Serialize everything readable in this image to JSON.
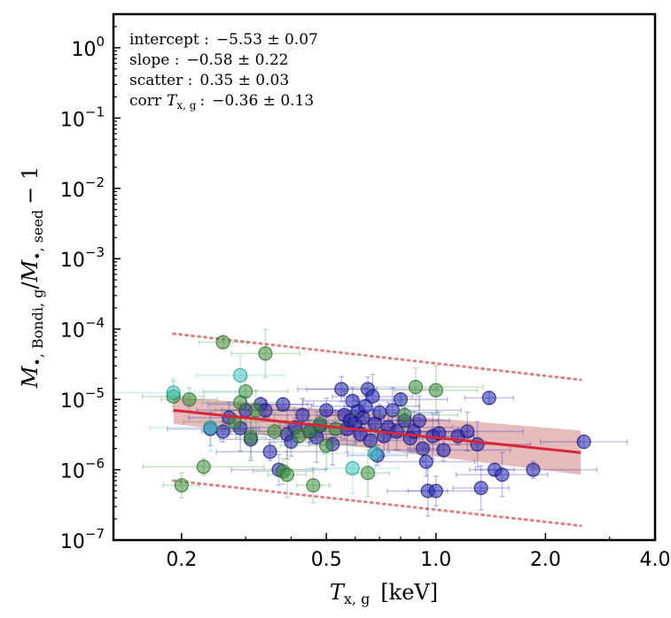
{
  "chart_data": {
    "type": "scatter",
    "xscale": "log",
    "yscale": "log",
    "xlim": [
      0.13,
      4.0
    ],
    "ylim": [
      1e-07,
      3.0
    ],
    "xticks": [
      {
        "value": 0.2,
        "label": "0.2"
      },
      {
        "value": 0.5,
        "label": "0.5"
      },
      {
        "value": 1.0,
        "label": "1.0"
      },
      {
        "value": 2.0,
        "label": "2.0"
      },
      {
        "value": 4.0,
        "label": "4.0"
      }
    ],
    "yticks": [
      {
        "value": 1e-07,
        "mantissa": "10",
        "exponent": "−7"
      },
      {
        "value": 1e-06,
        "mantissa": "10",
        "exponent": "−6"
      },
      {
        "value": 1e-05,
        "mantissa": "10",
        "exponent": "−5"
      },
      {
        "value": 0.0001,
        "mantissa": "10",
        "exponent": "−4"
      },
      {
        "value": 0.001,
        "mantissa": "10",
        "exponent": "−3"
      },
      {
        "value": 0.01,
        "mantissa": "10",
        "exponent": "−2"
      },
      {
        "value": 0.1,
        "mantissa": "10",
        "exponent": "−1"
      },
      {
        "value": 1.0,
        "mantissa": "10",
        "exponent": "0"
      }
    ],
    "xlabel": {
      "symbol": "T",
      "subscript": "x, g",
      "unit": "[keV]"
    },
    "ylabel": {
      "symbol1": "M",
      "subscript1": "•, Bondi, g",
      "symbol2": "M",
      "subscript2": "•, seed",
      "suffix": "− 1"
    },
    "annotations": [
      {
        "label": "intercept :",
        "value": "−5.53 ± 0.07"
      },
      {
        "label": "slope :",
        "value": "−0.58 ± 0.22"
      },
      {
        "label": "scatter :",
        "value": "0.35 ± 0.03"
      },
      {
        "label": "corr",
        "symbol": "T",
        "subscript": "x, g",
        "colon": ":",
        "value": "−0.36 ± 0.13"
      }
    ],
    "fit": {
      "x_range": [
        0.19,
        2.5
      ],
      "y_start": 7e-06,
      "y_end": 1.75e-06,
      "band_lower": [
        4.5e-06,
        8.5e-07
      ],
      "band_upper": [
        1.1e-05,
        3.6e-06
      ],
      "scatter_upper": [
        8.6e-05,
        1.9e-05
      ],
      "scatter_lower": [
        7e-07,
        1.6e-07
      ],
      "line_color": "#d62739",
      "band_color": "#c76868",
      "dotted_color": "#d98484"
    },
    "series": [
      {
        "name": "blue",
        "color": "#2323b0",
        "edge": "#0a0a60",
        "points": [
          [
            0.24,
            3.8e-06
          ],
          [
            0.26,
            3.5e-06
          ],
          [
            0.27,
            5.5e-06
          ],
          [
            0.29,
            3.9e-06
          ],
          [
            0.3,
            7e-06
          ],
          [
            0.31,
            2.7e-06
          ],
          [
            0.33,
            8.5e-06
          ],
          [
            0.34,
            7e-06
          ],
          [
            0.35,
            1.8e-06
          ],
          [
            0.37,
            1e-06
          ],
          [
            0.38,
            8.5e-06
          ],
          [
            0.39,
            3.2e-06
          ],
          [
            0.4,
            2.5e-06
          ],
          [
            0.41,
            4e-06
          ],
          [
            0.43,
            6e-06
          ],
          [
            0.45,
            3.5e-06
          ],
          [
            0.47,
            2.9e-06
          ],
          [
            0.48,
            4.2e-06
          ],
          [
            0.5,
            7e-06
          ],
          [
            0.52,
            2.3e-06
          ],
          [
            0.55,
            1.4e-05
          ],
          [
            0.56,
            6e-06
          ],
          [
            0.57,
            3.8e-06
          ],
          [
            0.58,
            5e-06
          ],
          [
            0.59,
            9.5e-06
          ],
          [
            0.6,
            4.5e-06
          ],
          [
            0.61,
            6.8e-06
          ],
          [
            0.62,
            3.2e-06
          ],
          [
            0.63,
            5.5e-06
          ],
          [
            0.64,
            8e-06
          ],
          [
            0.65,
            1.4e-05
          ],
          [
            0.66,
            2.6e-06
          ],
          [
            0.67,
            1.1e-05
          ],
          [
            0.68,
            4.5e-06
          ],
          [
            0.69,
            1.6e-06
          ],
          [
            0.7,
            6.5e-06
          ],
          [
            0.72,
            3e-06
          ],
          [
            0.74,
            4e-06
          ],
          [
            0.76,
            7e-06
          ],
          [
            0.78,
            3.5e-06
          ],
          [
            0.8,
            1e-05
          ],
          [
            0.82,
            5e-06
          ],
          [
            0.85,
            2.8e-06
          ],
          [
            0.87,
            3.5e-06
          ],
          [
            0.9,
            5e-06
          ],
          [
            0.92,
            2e-06
          ],
          [
            0.94,
            1.3e-06
          ],
          [
            0.95,
            5e-07
          ],
          [
            0.98,
            3e-06
          ],
          [
            1.0,
            5e-07
          ],
          [
            1.02,
            3.3e-06
          ],
          [
            1.05,
            1.9e-06
          ],
          [
            1.15,
            3e-06
          ],
          [
            1.22,
            3.5e-06
          ],
          [
            1.3,
            2.3e-06
          ],
          [
            1.33,
            5.5e-07
          ],
          [
            1.4,
            1.05e-05
          ],
          [
            1.45,
            1e-06
          ],
          [
            1.52,
            8.5e-07
          ],
          [
            1.85,
            1e-06
          ],
          [
            2.55,
            2.5e-06
          ]
        ]
      },
      {
        "name": "green",
        "color": "#3c8f3c",
        "edge": "#1f5c1f",
        "points": [
          [
            0.19,
            1.1e-05
          ],
          [
            0.2,
            6e-07
          ],
          [
            0.21,
            1e-05
          ],
          [
            0.23,
            1.1e-06
          ],
          [
            0.26,
            6.5e-05
          ],
          [
            0.28,
            4.8e-06
          ],
          [
            0.29,
            9e-06
          ],
          [
            0.3,
            1.3e-05
          ],
          [
            0.31,
            2.9e-06
          ],
          [
            0.32,
            7e-06
          ],
          [
            0.34,
            4.5e-05
          ],
          [
            0.36,
            3.5e-06
          ],
          [
            0.38,
            9.5e-07
          ],
          [
            0.39,
            8.5e-07
          ],
          [
            0.42,
            3e-06
          ],
          [
            0.45,
            3.5e-06
          ],
          [
            0.46,
            6e-07
          ],
          [
            0.48,
            4.5e-06
          ],
          [
            0.5,
            2.2e-06
          ],
          [
            0.53,
            3.8e-06
          ],
          [
            0.65,
            9e-07
          ],
          [
            0.82,
            6e-06
          ],
          [
            0.88,
            1.5e-05
          ],
          [
            1.0,
            1.35e-05
          ]
        ]
      },
      {
        "name": "cyan",
        "color": "#3fc9c4",
        "edge": "#1f8f8c",
        "points": [
          [
            0.19,
            1.25e-05
          ],
          [
            0.29,
            2.2e-05
          ],
          [
            0.24,
            4e-06
          ],
          [
            0.59,
            1.05e-06
          ],
          [
            0.68,
            1.7e-06
          ]
        ]
      }
    ]
  }
}
